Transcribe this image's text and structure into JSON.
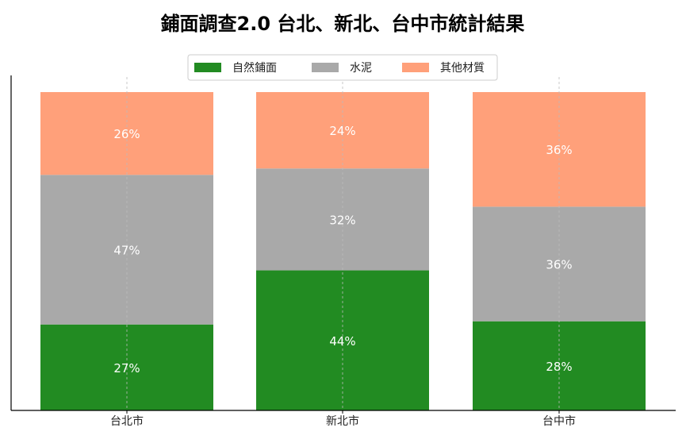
{
  "chart_data": {
    "type": "bar",
    "stacked": true,
    "normalized_percent": true,
    "title": "鋪面調查2.0  台北、新北、台中市統計結果",
    "xlabel": "",
    "ylabel": "",
    "ylim": [
      0,
      100
    ],
    "grid": "x-dashed",
    "legend_position": "top-center",
    "categories": [
      "台北市",
      "新北市",
      "台中市"
    ],
    "series": [
      {
        "name": "自然鋪面",
        "color": "#228b22",
        "values": [
          27,
          44,
          28
        ],
        "labels": [
          "27%",
          "44%",
          "28%"
        ]
      },
      {
        "name": "水泥",
        "color": "#a9a9a9",
        "values": [
          47,
          32,
          36
        ],
        "labels": [
          "47%",
          "32%",
          "36%"
        ]
      },
      {
        "name": "其他材質",
        "color": "#ffa07a",
        "values": [
          26,
          24,
          36
        ],
        "labels": [
          "26%",
          "24%",
          "36%"
        ]
      }
    ]
  }
}
